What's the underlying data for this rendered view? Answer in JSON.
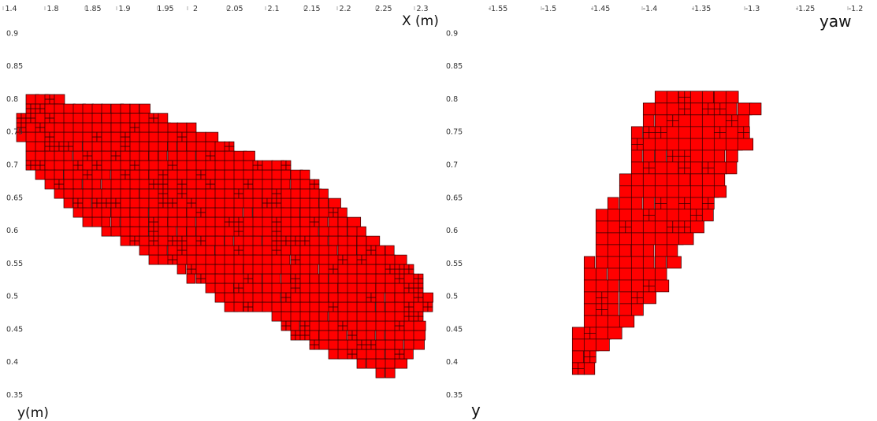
{
  "chart_data": [
    {
      "type": "scatter",
      "title": "",
      "xlabel": "X (m)",
      "ylabel": "y(m)",
      "xlim": [
        1.77,
        2.32
      ],
      "ylim": [
        0.35,
        0.91
      ],
      "xticks": [
        "1.4",
        "1.8",
        "1.85",
        "1.9",
        "1.95",
        "2",
        "2.05",
        "2.1",
        "2.15",
        "2.2",
        "2.25",
        "2.3"
      ],
      "yticks": [
        "0.9",
        "0.85",
        "0.8",
        "0.75",
        "0.7",
        "0.65",
        "0.6",
        "0.55",
        "0.5",
        "0.45",
        "0.4",
        "0.35"
      ],
      "mark_color": "#ff0000",
      "region_outline": [
        [
          1.805,
          0.807
        ],
        [
          1.83,
          0.807
        ],
        [
          1.84,
          0.798
        ],
        [
          1.88,
          0.797
        ],
        [
          1.94,
          0.79
        ],
        [
          1.97,
          0.775
        ],
        [
          2.0,
          0.762
        ],
        [
          2.03,
          0.745
        ],
        [
          2.06,
          0.729
        ],
        [
          2.09,
          0.71
        ],
        [
          2.13,
          0.7
        ],
        [
          2.15,
          0.69
        ],
        [
          2.18,
          0.66
        ],
        [
          2.2,
          0.637
        ],
        [
          2.22,
          0.612
        ],
        [
          2.24,
          0.588
        ],
        [
          2.26,
          0.567
        ],
        [
          2.28,
          0.548
        ],
        [
          2.3,
          0.52
        ],
        [
          2.31,
          0.498
        ],
        [
          2.305,
          0.47
        ],
        [
          2.3,
          0.44
        ],
        [
          2.285,
          0.41
        ],
        [
          2.27,
          0.385
        ],
        [
          2.25,
          0.378
        ],
        [
          2.235,
          0.393
        ],
        [
          2.2,
          0.4
        ],
        [
          2.17,
          0.418
        ],
        [
          2.15,
          0.432
        ],
        [
          2.12,
          0.452
        ],
        [
          2.1,
          0.472
        ],
        [
          2.05,
          0.48
        ],
        [
          2.02,
          0.512
        ],
        [
          1.99,
          0.54
        ],
        [
          1.96,
          0.553
        ],
        [
          1.93,
          0.573
        ],
        [
          1.9,
          0.592
        ],
        [
          1.87,
          0.612
        ],
        [
          1.85,
          0.632
        ],
        [
          1.82,
          0.663
        ],
        [
          1.8,
          0.688
        ],
        [
          1.79,
          0.73
        ],
        [
          1.783,
          0.765
        ],
        [
          1.79,
          0.785
        ]
      ]
    },
    {
      "type": "scatter",
      "title": "",
      "xlabel": "yaw",
      "ylabel": "y",
      "xlim": [
        -1.565,
        -1.2
      ],
      "ylim": [
        0.35,
        0.91
      ],
      "xticks": [
        "-1.55",
        "-1.5",
        "-1.45",
        "-1.4",
        "-1.35",
        "-1.3",
        "-1.25",
        "-1.2"
      ],
      "yticks": [
        "0.9",
        "0.85",
        "0.8",
        "0.75",
        "0.7",
        "0.65",
        "0.6",
        "0.55",
        "0.5",
        "0.45",
        "0.4",
        "0.35"
      ],
      "mark_color": "#ff0000",
      "region_outline": [
        [
          -1.452,
          0.378
        ],
        [
          -1.438,
          0.378
        ],
        [
          -1.43,
          0.43
        ],
        [
          -1.405,
          0.46
        ],
        [
          -1.39,
          0.493
        ],
        [
          -1.375,
          0.532
        ],
        [
          -1.36,
          0.577
        ],
        [
          -1.345,
          0.61
        ],
        [
          -1.33,
          0.645
        ],
        [
          -1.322,
          0.68
        ],
        [
          -1.31,
          0.73
        ],
        [
          -1.3,
          0.785
        ],
        [
          -1.31,
          0.8
        ],
        [
          -1.335,
          0.812
        ],
        [
          -1.375,
          0.81
        ],
        [
          -1.395,
          0.79
        ],
        [
          -1.405,
          0.75
        ],
        [
          -1.41,
          0.7
        ],
        [
          -1.42,
          0.66
        ],
        [
          -1.433,
          0.632
        ],
        [
          -1.44,
          0.59
        ],
        [
          -1.445,
          0.545
        ],
        [
          -1.45,
          0.49
        ],
        [
          -1.455,
          0.44
        ],
        [
          -1.458,
          0.4
        ]
      ]
    }
  ]
}
